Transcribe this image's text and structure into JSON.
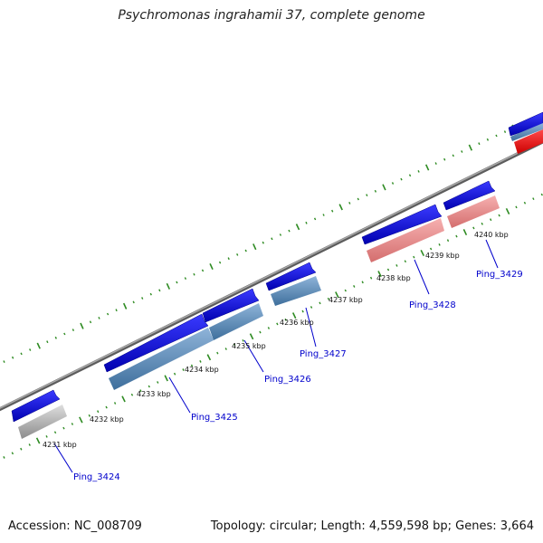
{
  "title": "Psychromonas ingrahamii 37, complete genome",
  "footer": {
    "accession": "Accession: NC_008709",
    "summary": "Topology: circular; Length: 4,559,598 bp; Genes: 3,664"
  },
  "colors": {
    "background": "#ffffff",
    "backbone": "#808080",
    "tick": "#2e8b22",
    "gene_arrow": "#1010ee",
    "label_blue": "#0000cc",
    "feature_gray": "#bdbdbd",
    "feature_steelblue": "#5f8fbf",
    "feature_pink": "#ec8c8c",
    "feature_red": "#ff0000"
  },
  "scale_labels": [
    "4231 kbp",
    "4232 kbp",
    "4233 kbp",
    "4234 kbp",
    "4235 kbp",
    "4236 kbp",
    "4237 kbp",
    "4238 kbp",
    "4239 kbp",
    "4240 kbp"
  ],
  "genes": [
    {
      "name": "Ping_3424",
      "feature_color": "feature_gray"
    },
    {
      "name": "Ping_3425",
      "feature_color": "feature_steelblue"
    },
    {
      "name": "Ping_3426",
      "feature_color": "feature_steelblue"
    },
    {
      "name": "Ping_3427",
      "feature_color": "feature_steelblue"
    },
    {
      "name": "Ping_3428",
      "feature_color": "feature_pink"
    },
    {
      "name": "Ping_3429",
      "feature_color": "feature_pink"
    }
  ]
}
